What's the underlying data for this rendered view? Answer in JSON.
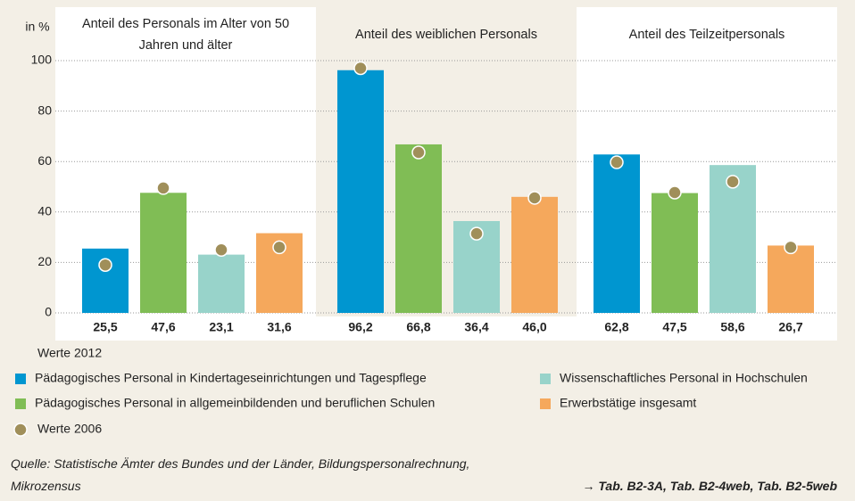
{
  "chart_data": {
    "type": "bar",
    "y_label": "in %",
    "categories": [
      "Anteil des Personals im Alter von 50 Jahren und älter",
      "Anteil des weiblichen Personals",
      "Anteil des Teilzeitpersonals"
    ],
    "bar_label": "Werte 2012",
    "series": [
      {
        "name": "Pädagogisches Personal in Kindertageseinrichtungen und Tagespflege",
        "color": "#0096d0",
        "values": [
          25.5,
          96.2,
          62.8
        ],
        "value_labels": [
          "25,5",
          "96,2",
          "62,8"
        ]
      },
      {
        "name": "Pädagogisches Personal in allgemeinbildenden und beruflichen Schulen",
        "color": "#80bd55",
        "values": [
          47.6,
          66.8,
          47.5
        ],
        "value_labels": [
          "47,6",
          "66,8",
          "47,5"
        ]
      },
      {
        "name": "Wissenschaftliches Personal in Hochschulen",
        "color": "#98d3ca",
        "values": [
          23.1,
          36.4,
          58.6
        ],
        "value_labels": [
          "23,1",
          "36,4",
          "58,6"
        ]
      },
      {
        "name": "Erwerbstätige insgesamt",
        "color": "#f5a85c",
        "values": [
          31.6,
          46.0,
          26.7
        ],
        "value_labels": [
          "31,6",
          "46,0",
          "26,7"
        ]
      }
    ],
    "markers": {
      "name": "Werte 2006",
      "color": "#a08f5a",
      "values": [
        [
          19,
          97,
          59.7
        ],
        [
          49.5,
          63.6,
          47.7
        ],
        [
          25,
          31.4,
          52
        ],
        [
          26,
          45.6,
          26
        ]
      ]
    },
    "ylim": [
      0,
      100
    ],
    "yticks": [
      0,
      20,
      40,
      60,
      80,
      100
    ],
    "grid": true,
    "source": "Quelle: Statistische Ämter des Bundes und der Länder, Bildungspersonalrechnung,",
    "source_2": "Mikrozensus",
    "reference": "→ Tab. B2-3A, Tab. B2-4web, Tab. B2-5web"
  }
}
